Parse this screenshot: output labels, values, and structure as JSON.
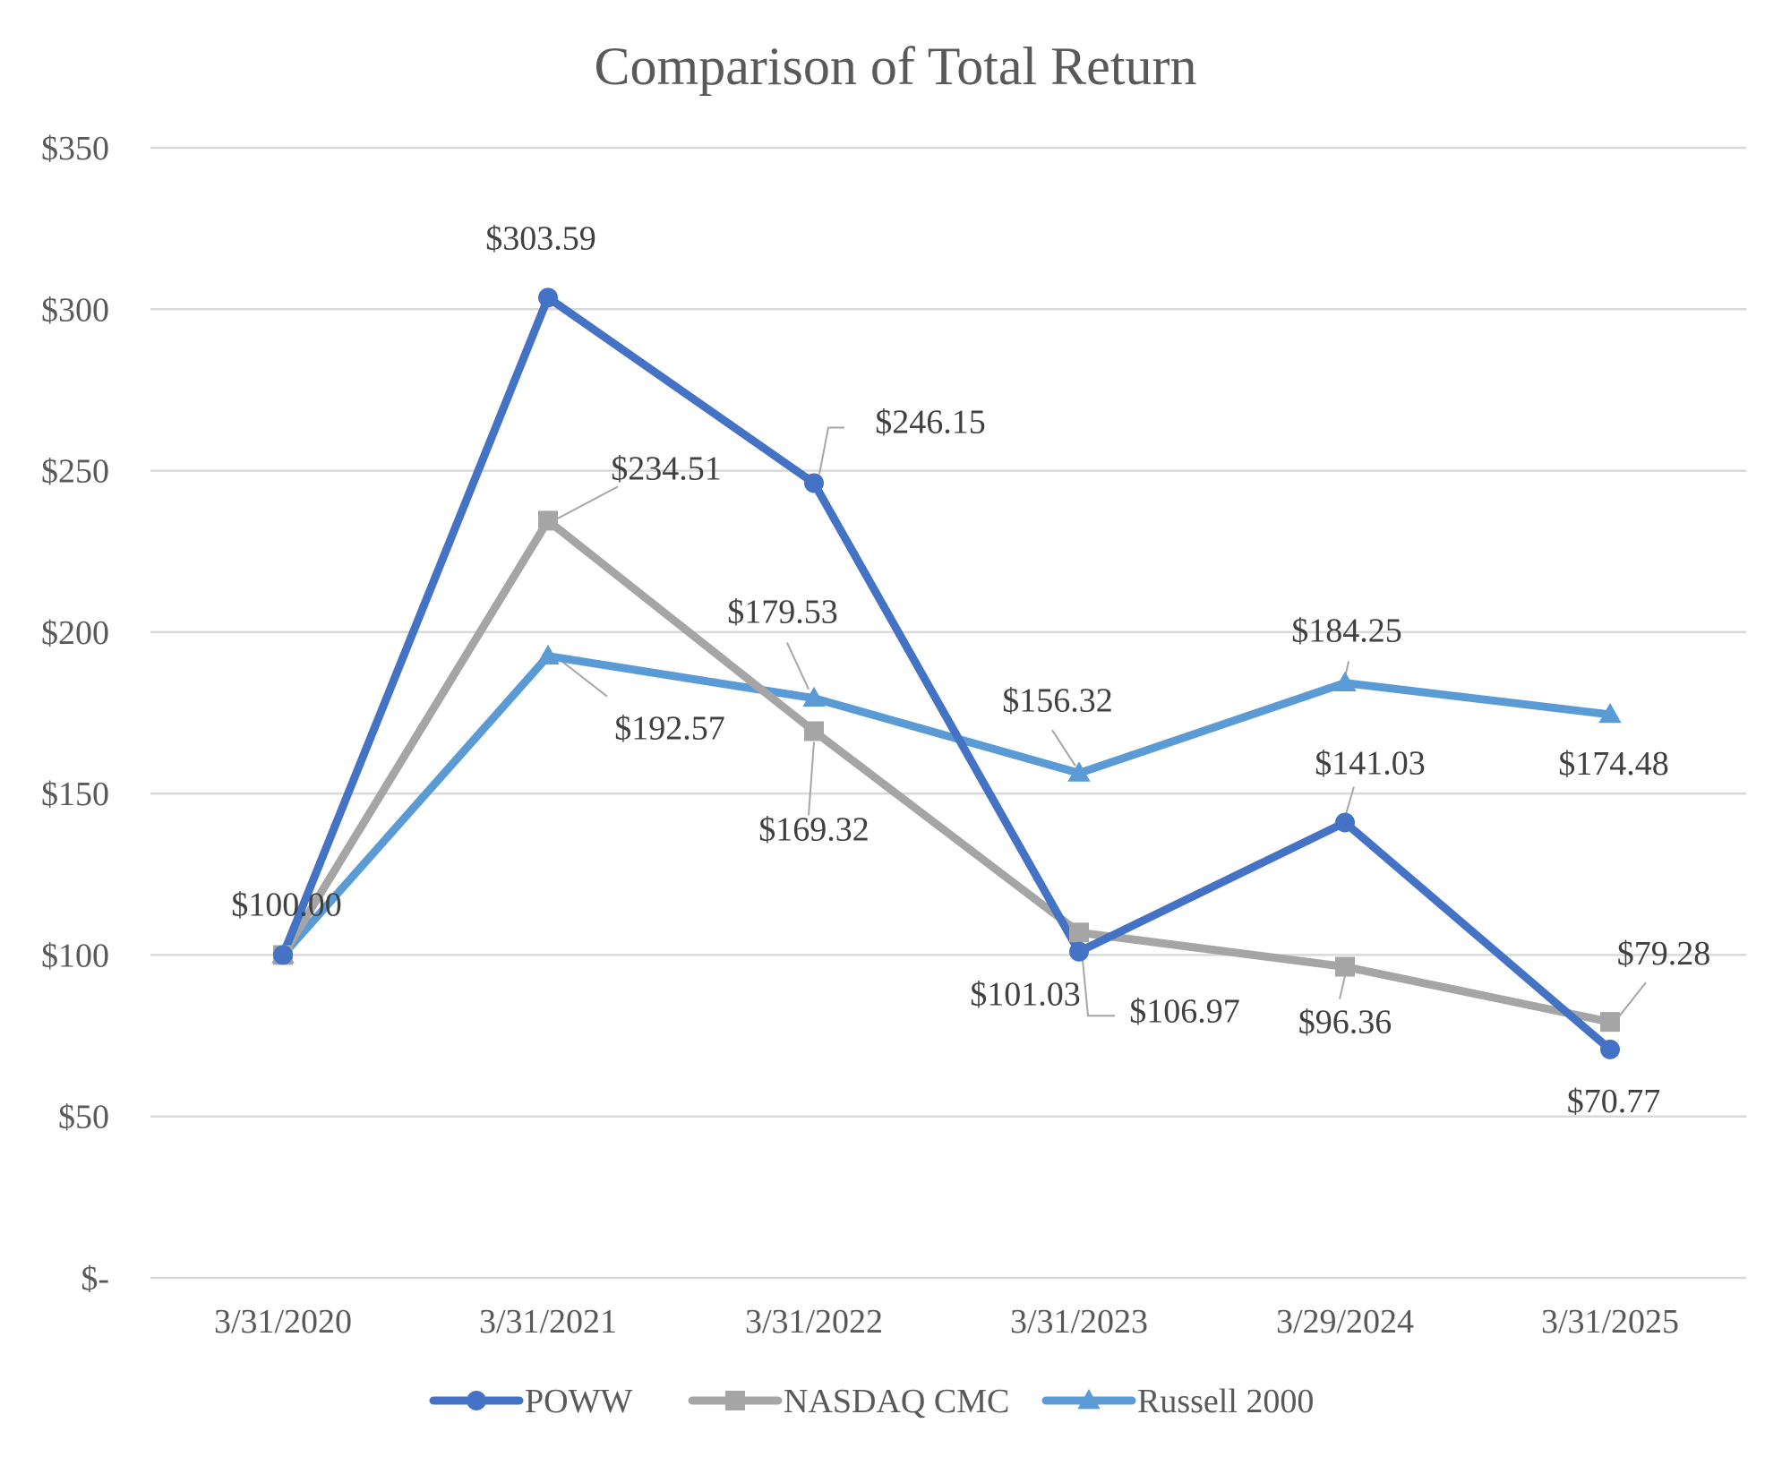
{
  "chart_data": {
    "type": "line",
    "title": "Comparison of Total Return",
    "categories": [
      "3/31/2020",
      "3/31/2021",
      "3/31/2022",
      "3/31/2023",
      "3/29/2024",
      "3/31/2025"
    ],
    "ylim": [
      0,
      350
    ],
    "yticks": [
      0,
      50,
      100,
      150,
      200,
      250,
      300,
      350
    ],
    "ytick_labels": [
      "$-",
      "$50",
      "$100",
      "$150",
      "$200",
      "$250",
      "$300",
      "$350"
    ],
    "grid": "horizontal",
    "legend_position": "bottom",
    "series": [
      {
        "name": "POWW",
        "color": "#4472C4",
        "marker": "circle",
        "values": [
          100.0,
          303.59,
          246.15,
          101.03,
          141.03,
          70.77
        ],
        "labels": [
          "$100.00",
          "$303.59",
          "$246.15",
          "$101.03",
          "$141.03",
          "$70.77"
        ]
      },
      {
        "name": "NASDAQ CMC",
        "color": "#A5A5A5",
        "marker": "square",
        "values": [
          100.0,
          234.51,
          169.32,
          106.97,
          96.36,
          79.28
        ],
        "labels": [
          "",
          "$234.51",
          "$169.32",
          "$106.97",
          "$96.36",
          "$79.28"
        ]
      },
      {
        "name": "Russell 2000",
        "color": "#5B9BD5",
        "marker": "triangle",
        "values": [
          100.0,
          192.57,
          179.53,
          156.32,
          184.25,
          174.48
        ],
        "labels": [
          "",
          "$192.57",
          "$179.53",
          "$156.32",
          "$184.25",
          "$174.48"
        ]
      }
    ]
  }
}
